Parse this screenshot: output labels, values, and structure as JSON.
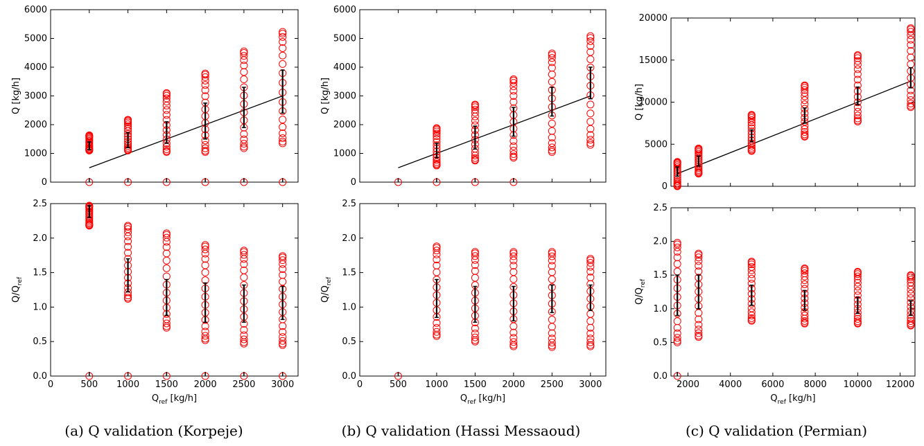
{
  "captions": [
    "(a) Q validation (Korpeje)",
    "(b) Q validation (Hassi Messaoud)",
    "(c) Q validation (Permian)"
  ],
  "colors": {
    "marker": "#ff0000",
    "errorbar": "#000000",
    "line": "#000000"
  },
  "chart_data": [
    {
      "type": "scatter",
      "panel": "a-top",
      "xlabel": "Q_ref [kg/h]",
      "ylabel": "Q [kg/h]",
      "xlim": [
        0,
        3200
      ],
      "ylim": [
        0,
        6000
      ],
      "xticks": [],
      "yticks": [
        0,
        1000,
        2000,
        3000,
        4000,
        5000,
        6000
      ],
      "reference_line": [
        [
          500,
          500
        ],
        [
          3000,
          3000
        ]
      ],
      "zero_points": [
        500,
        1000,
        1500,
        2000,
        2500,
        3000
      ],
      "groups": [
        {
          "x": 500,
          "mean": 1270,
          "err_low": 1130,
          "err_high": 1400,
          "min": 1100,
          "max": 1630
        },
        {
          "x": 1000,
          "mean": 1470,
          "err_low": 1200,
          "err_high": 1720,
          "min": 1100,
          "max": 2170
        },
        {
          "x": 1500,
          "mean": 1750,
          "err_low": 1350,
          "err_high": 2100,
          "min": 1050,
          "max": 3100
        },
        {
          "x": 2000,
          "mean": 2150,
          "err_low": 1500,
          "err_high": 2750,
          "min": 1050,
          "max": 3780
        },
        {
          "x": 2500,
          "mean": 2700,
          "err_low": 1900,
          "err_high": 3300,
          "min": 1180,
          "max": 4550
        },
        {
          "x": 3000,
          "mean": 3250,
          "err_low": 2400,
          "err_high": 3900,
          "min": 1350,
          "max": 5230
        }
      ]
    },
    {
      "type": "scatter",
      "panel": "a-bottom",
      "xlabel": "Q_ref [kg/h]",
      "ylabel": "Q/Q_ref",
      "xlim": [
        0,
        3200
      ],
      "ylim": [
        0,
        2.5
      ],
      "xticks": [
        0,
        500,
        1000,
        1500,
        2000,
        2500,
        3000
      ],
      "yticks": [
        0.0,
        0.5,
        1.0,
        1.5,
        2.0,
        2.5
      ],
      "zero_points": [
        500,
        1000,
        1500,
        2000,
        2500,
        3000
      ],
      "groups": [
        {
          "x": 500,
          "mean": 2.38,
          "err_low": 2.3,
          "err_high": 2.47,
          "min": 2.18,
          "max": 2.47
        },
        {
          "x": 1000,
          "mean": 1.45,
          "err_low": 1.22,
          "err_high": 1.7,
          "min": 1.12,
          "max": 2.18
        },
        {
          "x": 1500,
          "mean": 1.1,
          "err_low": 0.88,
          "err_high": 1.4,
          "min": 0.7,
          "max": 2.07
        },
        {
          "x": 2000,
          "mean": 1.05,
          "err_low": 0.78,
          "err_high": 1.35,
          "min": 0.52,
          "max": 1.9
        },
        {
          "x": 2500,
          "mean": 1.05,
          "err_low": 0.78,
          "err_high": 1.32,
          "min": 0.47,
          "max": 1.82
        },
        {
          "x": 3000,
          "mean": 1.05,
          "err_low": 0.82,
          "err_high": 1.3,
          "min": 0.45,
          "max": 1.74
        }
      ]
    },
    {
      "type": "scatter",
      "panel": "b-top",
      "xlabel": "Q_ref [kg/h]",
      "ylabel": "Q [kg/h]",
      "xlim": [
        0,
        3200
      ],
      "ylim": [
        0,
        6000
      ],
      "xticks": [],
      "yticks": [
        0,
        1000,
        2000,
        3000,
        4000,
        5000,
        6000
      ],
      "reference_line": [
        [
          500,
          500
        ],
        [
          3000,
          3000
        ]
      ],
      "zero_points": [
        500,
        1000,
        1500,
        2000
      ],
      "groups": [
        {
          "x": 1000,
          "mean": 1050,
          "err_low": 850,
          "err_high": 1350,
          "min": 580,
          "max": 1880
        },
        {
          "x": 1500,
          "mean": 1500,
          "err_low": 1150,
          "err_high": 1950,
          "min": 750,
          "max": 2700
        },
        {
          "x": 2000,
          "mean": 2100,
          "err_low": 1600,
          "err_high": 2600,
          "min": 850,
          "max": 3580
        },
        {
          "x": 2500,
          "mean": 2850,
          "err_low": 2300,
          "err_high": 3300,
          "min": 1050,
          "max": 4480
        },
        {
          "x": 3000,
          "mean": 3450,
          "err_low": 2900,
          "err_high": 4000,
          "min": 1300,
          "max": 5080
        }
      ]
    },
    {
      "type": "scatter",
      "panel": "b-bottom",
      "xlabel": "Q_ref [kg/h]",
      "ylabel": "Q/Q_ref",
      "xlim": [
        0,
        3200
      ],
      "ylim": [
        0,
        2.5
      ],
      "xticks": [
        0,
        500,
        1000,
        1500,
        2000,
        2500,
        3000
      ],
      "yticks": [
        0.0,
        0.5,
        1.0,
        1.5,
        2.0,
        2.5
      ],
      "zero_points": [
        500
      ],
      "groups": [
        {
          "x": 1000,
          "mean": 1.1,
          "err_low": 0.85,
          "err_high": 1.4,
          "min": 0.58,
          "max": 1.88
        },
        {
          "x": 1500,
          "mean": 1.0,
          "err_low": 0.78,
          "err_high": 1.3,
          "min": 0.5,
          "max": 1.8
        },
        {
          "x": 2000,
          "mean": 1.05,
          "err_low": 0.8,
          "err_high": 1.3,
          "min": 0.43,
          "max": 1.8
        },
        {
          "x": 2500,
          "mean": 1.15,
          "err_low": 0.92,
          "err_high": 1.32,
          "min": 0.42,
          "max": 1.8
        },
        {
          "x": 3000,
          "mean": 1.15,
          "err_low": 0.95,
          "err_high": 1.32,
          "min": 0.43,
          "max": 1.7
        }
      ]
    },
    {
      "type": "scatter",
      "panel": "c-top",
      "xlabel": "Q_ref [kg/h]",
      "ylabel": "Q [kg/h]",
      "xlim": [
        1200,
        12700
      ],
      "ylim": [
        0,
        20000
      ],
      "xticks": [],
      "yticks": [
        0,
        5000,
        10000,
        15000,
        20000
      ],
      "reference_line": [
        [
          1500,
          1500
        ],
        [
          12500,
          12500
        ]
      ],
      "zero_points": [],
      "groups": [
        {
          "x": 1500,
          "mean": 1700,
          "err_low": 1200,
          "err_high": 2300,
          "min": 0,
          "max": 2900
        },
        {
          "x": 2500,
          "mean": 3000,
          "err_low": 2400,
          "err_high": 3600,
          "min": 1500,
          "max": 4500
        },
        {
          "x": 5000,
          "mean": 5900,
          "err_low": 5300,
          "err_high": 6700,
          "min": 4200,
          "max": 8500
        },
        {
          "x": 7500,
          "mean": 8300,
          "err_low": 7500,
          "err_high": 9300,
          "min": 5900,
          "max": 12000
        },
        {
          "x": 10000,
          "mean": 10700,
          "err_low": 9700,
          "err_high": 11800,
          "min": 7700,
          "max": 15600
        },
        {
          "x": 12500,
          "mean": 12800,
          "err_low": 11700,
          "err_high": 14100,
          "min": 9400,
          "max": 18800
        }
      ]
    },
    {
      "type": "scatter",
      "panel": "c-bottom",
      "xlabel": "Q_ref [kg/h]",
      "ylabel": "Q/Q_ref",
      "xlim": [
        1200,
        12700
      ],
      "ylim": [
        0,
        2.5
      ],
      "xticks": [
        2000,
        4000,
        6000,
        8000,
        10000,
        12000
      ],
      "yticks": [
        0.0,
        0.5,
        1.0,
        1.5,
        2.0,
        2.5
      ],
      "zero_points": [
        1500
      ],
      "groups": [
        {
          "x": 1500,
          "mean": 1.2,
          "err_low": 0.9,
          "err_high": 1.5,
          "min": 0.5,
          "max": 1.98
        },
        {
          "x": 2500,
          "mean": 1.25,
          "err_low": 1.0,
          "err_high": 1.5,
          "min": 0.58,
          "max": 1.82
        },
        {
          "x": 5000,
          "mean": 1.2,
          "err_low": 1.05,
          "err_high": 1.35,
          "min": 0.82,
          "max": 1.7
        },
        {
          "x": 7500,
          "mean": 1.12,
          "err_low": 0.98,
          "err_high": 1.27,
          "min": 0.78,
          "max": 1.6
        },
        {
          "x": 10000,
          "mean": 1.05,
          "err_low": 0.93,
          "err_high": 1.17,
          "min": 0.78,
          "max": 1.55
        },
        {
          "x": 12500,
          "mean": 1.02,
          "err_low": 0.9,
          "err_high": 1.12,
          "min": 0.75,
          "max": 1.5
        }
      ]
    }
  ]
}
